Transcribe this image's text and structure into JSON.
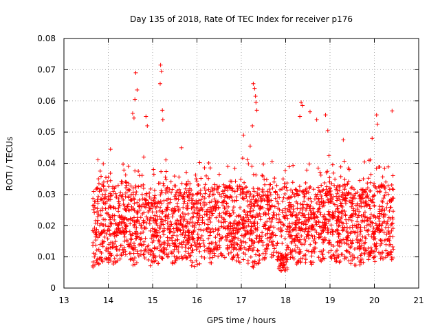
{
  "chart_data": {
    "type": "scatter",
    "title": "Day 135 of 2018, Rate Of TEC Index for receiver p176",
    "xlabel": "GPS time / hours",
    "ylabel": "ROTI / TECUs",
    "xlim": [
      13,
      21
    ],
    "ylim": [
      0,
      0.08
    ],
    "x_ticks": [
      13,
      14,
      15,
      16,
      17,
      18,
      19,
      20,
      21
    ],
    "x_tick_labels": [
      "13",
      "14",
      "15",
      "16",
      "17",
      "18",
      "19",
      "20",
      "21"
    ],
    "y_ticks": [
      0,
      0.01,
      0.02,
      0.03,
      0.04,
      0.05,
      0.06,
      0.07,
      0.08
    ],
    "y_tick_labels": [
      "0",
      "0.01",
      "0.02",
      "0.03",
      "0.04",
      "0.05",
      "0.06",
      "0.07",
      "0.08"
    ],
    "grid": true,
    "marker": "+",
    "color": "#ff0000",
    "x_range_observed": [
      13.65,
      20.43
    ],
    "series": [
      {
        "name": "ROTI",
        "points": [
          [
            14.62,
            0.069
          ],
          [
            14.65,
            0.0635
          ],
          [
            15.18,
            0.0715
          ],
          [
            15.2,
            0.0695
          ],
          [
            15.17,
            0.0655
          ],
          [
            15.22,
            0.057
          ],
          [
            15.23,
            0.054
          ],
          [
            17.27,
            0.0655
          ],
          [
            17.3,
            0.064
          ],
          [
            17.32,
            0.0615
          ],
          [
            17.33,
            0.0595
          ],
          [
            17.35,
            0.057
          ],
          [
            17.05,
            0.049
          ],
          [
            17.2,
            0.0455
          ],
          [
            17.25,
            0.052
          ],
          [
            18.35,
            0.0595
          ],
          [
            18.38,
            0.0585
          ],
          [
            18.32,
            0.055
          ],
          [
            18.55,
            0.0565
          ],
          [
            18.7,
            0.054
          ],
          [
            18.9,
            0.0555
          ],
          [
            18.95,
            0.0505
          ],
          [
            19.3,
            0.0475
          ],
          [
            20.05,
            0.0555
          ],
          [
            20.07,
            0.0525
          ],
          [
            19.95,
            0.048
          ],
          [
            20.4,
            0.0568
          ],
          [
            14.55,
            0.056
          ],
          [
            14.58,
            0.0545
          ],
          [
            14.6,
            0.0605
          ],
          [
            14.85,
            0.055
          ],
          [
            14.88,
            0.052
          ],
          [
            14.05,
            0.0445
          ],
          [
            14.8,
            0.042
          ],
          [
            15.65,
            0.045
          ],
          [
            16.3,
            0.0385
          ],
          [
            17.95,
            0.0065
          ],
          [
            17.9,
            0.0055
          ],
          [
            17.85,
            0.0062
          ],
          [
            18.0,
            0.0058
          ],
          [
            13.7,
            0.0075
          ],
          [
            13.8,
            0.0095
          ],
          [
            14.3,
            0.0105
          ],
          [
            15.45,
            0.0078
          ],
          [
            16.8,
            0.0092
          ],
          [
            19.7,
            0.0082
          ],
          [
            20.3,
            0.0105
          ]
        ]
      }
    ]
  }
}
